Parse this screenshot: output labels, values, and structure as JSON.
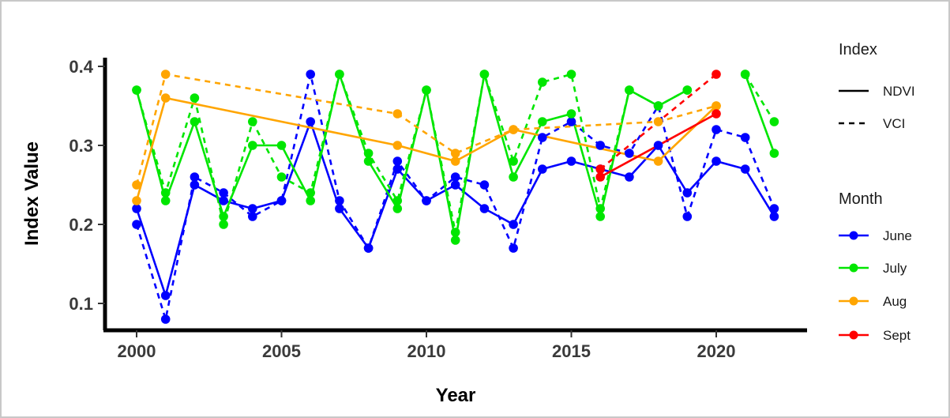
{
  "chart_data": {
    "type": "line",
    "title": "",
    "xlabel": "Year",
    "ylabel": "Index Value",
    "xlim": [
      1999.2,
      2022.6
    ],
    "ylim": [
      0.065,
      0.405
    ],
    "x_ticks": [
      2000,
      2005,
      2010,
      2015,
      2020
    ],
    "x_tick_labels": [
      "2000",
      "2005",
      "2010",
      "2015",
      "2020"
    ],
    "y_ticks": [
      0.1,
      0.2,
      0.3,
      0.4
    ],
    "y_tick_labels": [
      "0.1",
      "0.2",
      "0.3",
      "0.4"
    ],
    "grid": false,
    "legend_placement": "right",
    "legends": {
      "index": {
        "title": "Index",
        "entries": [
          {
            "label": "NDVI",
            "linestyle": "solid"
          },
          {
            "label": "VCI",
            "linestyle": "dashed"
          }
        ]
      },
      "month": {
        "title": "Month",
        "entries": [
          {
            "label": "June",
            "color": "#0000ff"
          },
          {
            "label": "July",
            "color": "#00e600"
          },
          {
            "label": "Aug",
            "color": "#ffa500"
          },
          {
            "label": "Sept",
            "color": "#ff0000"
          }
        ]
      }
    },
    "series": [
      {
        "index": "NDVI",
        "month": "June",
        "color": "#0000ff",
        "dashed": false,
        "points": [
          [
            2000,
            0.22
          ],
          [
            2001,
            0.11
          ],
          [
            2002,
            0.25
          ],
          [
            2003,
            0.23
          ],
          [
            2004,
            0.22
          ],
          [
            2005,
            0.23
          ],
          [
            2006,
            0.33
          ],
          [
            2007,
            0.22
          ],
          [
            2008,
            0.17
          ],
          [
            2009,
            0.27
          ],
          [
            2010,
            0.23
          ],
          [
            2011,
            0.25
          ],
          [
            2012,
            0.22
          ],
          [
            2013,
            0.2
          ],
          [
            2014,
            0.27
          ],
          [
            2015,
            0.28
          ],
          [
            2016,
            0.27
          ],
          [
            2017,
            0.26
          ],
          [
            2018,
            0.3
          ],
          [
            2019,
            0.24
          ],
          [
            2020,
            0.28
          ],
          [
            2021,
            0.27
          ],
          [
            2022,
            0.21
          ]
        ]
      },
      {
        "index": "VCI",
        "month": "June",
        "color": "#0000ff",
        "dashed": true,
        "points": [
          [
            2000,
            0.2
          ],
          [
            2001,
            0.08
          ],
          [
            2002,
            0.26
          ],
          [
            2003,
            0.24
          ],
          [
            2004,
            0.21
          ],
          [
            2005,
            0.23
          ],
          [
            2006,
            0.39
          ],
          [
            2007,
            0.23
          ],
          [
            2008,
            0.17
          ],
          [
            2009,
            0.28
          ],
          [
            2010,
            0.23
          ],
          [
            2011,
            0.26
          ],
          [
            2012,
            0.25
          ],
          [
            2013,
            0.17
          ],
          [
            2014,
            0.31
          ],
          [
            2015,
            0.33
          ],
          [
            2016,
            0.3
          ],
          [
            2017,
            0.29
          ],
          [
            2018,
            0.35
          ],
          [
            2019,
            0.21
          ],
          [
            2020,
            0.32
          ],
          [
            2021,
            0.31
          ],
          [
            2022,
            0.22
          ]
        ]
      },
      {
        "index": "NDVI",
        "month": "July",
        "color": "#00e600",
        "dashed": false,
        "points": [
          [
            2000,
            0.37
          ],
          [
            2001,
            0.23
          ],
          [
            2002,
            0.33
          ],
          [
            2003,
            0.21
          ],
          [
            2004,
            0.3
          ],
          [
            2005,
            0.3
          ],
          [
            2006,
            0.23
          ],
          [
            2007,
            0.39
          ],
          [
            2008,
            0.28
          ],
          [
            2009,
            0.22
          ],
          [
            2010,
            0.37
          ],
          [
            2011,
            0.18
          ],
          [
            2012,
            0.39
          ],
          [
            2013,
            0.26
          ],
          [
            2014,
            0.33
          ],
          [
            2015,
            0.34
          ],
          [
            2016,
            0.21
          ],
          [
            2017,
            0.37
          ],
          [
            2018,
            0.35
          ],
          [
            2019,
            0.37
          ],
          [
            2020,
            null
          ],
          [
            2021,
            0.39
          ],
          [
            2022,
            0.29
          ]
        ]
      },
      {
        "index": "VCI",
        "month": "July",
        "color": "#00e600",
        "dashed": true,
        "points": [
          [
            2000,
            0.37
          ],
          [
            2001,
            0.24
          ],
          [
            2002,
            0.36
          ],
          [
            2003,
            0.2
          ],
          [
            2004,
            0.33
          ],
          [
            2005,
            0.26
          ],
          [
            2006,
            0.24
          ],
          [
            2007,
            0.39
          ],
          [
            2008,
            0.29
          ],
          [
            2009,
            0.23
          ],
          [
            2010,
            0.37
          ],
          [
            2011,
            0.19
          ],
          [
            2012,
            0.39
          ],
          [
            2013,
            0.28
          ],
          [
            2014,
            0.38
          ],
          [
            2015,
            0.39
          ],
          [
            2016,
            0.22
          ],
          [
            2017,
            0.37
          ],
          [
            2018,
            0.35
          ],
          [
            2019,
            0.37
          ],
          [
            2020,
            null
          ],
          [
            2021,
            0.39
          ],
          [
            2022,
            0.33
          ]
        ]
      },
      {
        "index": "NDVI",
        "month": "Aug",
        "color": "#ffa500",
        "dashed": false,
        "points": [
          [
            2000,
            0.23
          ],
          [
            2001,
            0.36
          ],
          [
            2009,
            0.3
          ],
          [
            2011,
            0.28
          ],
          [
            2013,
            0.32
          ],
          [
            2018,
            0.28
          ],
          [
            2020,
            0.35
          ]
        ]
      },
      {
        "index": "VCI",
        "month": "Aug",
        "color": "#ffa500",
        "dashed": true,
        "points": [
          [
            2000,
            0.25
          ],
          [
            2001,
            0.39
          ],
          [
            2009,
            0.34
          ],
          [
            2011,
            0.29
          ],
          [
            2013,
            0.32
          ],
          [
            2018,
            0.33
          ],
          [
            2020,
            0.35
          ]
        ]
      },
      {
        "index": "NDVI",
        "month": "Sept",
        "color": "#ff0000",
        "dashed": false,
        "points": [
          [
            2016,
            0.26
          ],
          [
            2020,
            0.34
          ]
        ]
      },
      {
        "index": "VCI",
        "month": "Sept",
        "color": "#ff0000",
        "dashed": true,
        "points": [
          [
            2016,
            0.27
          ],
          [
            2020,
            0.39
          ]
        ]
      }
    ]
  }
}
